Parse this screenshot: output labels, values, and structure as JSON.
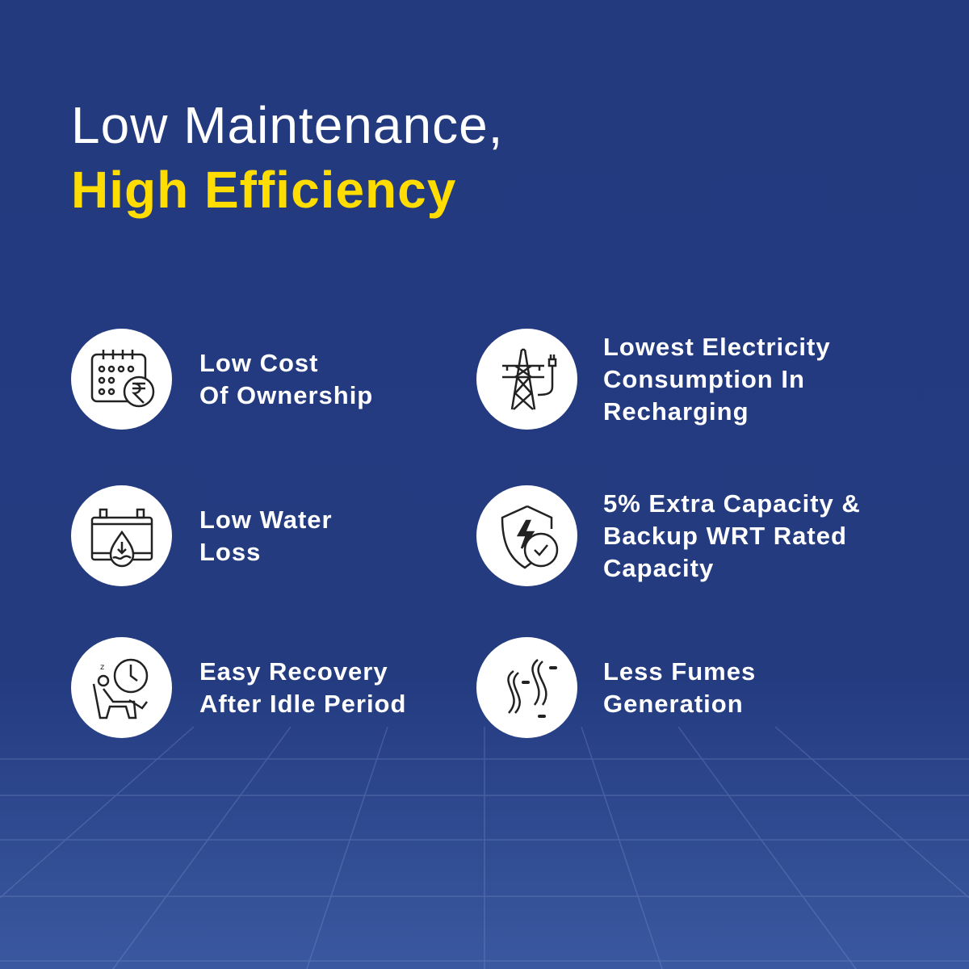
{
  "heading": {
    "line1": "Low Maintenance,",
    "line2": "High Efficiency"
  },
  "colors": {
    "background": "#243b80",
    "accent": "#ffdd00",
    "text": "#ffffff",
    "icon_bg": "#ffffff",
    "icon_stroke": "#222222"
  },
  "features": [
    {
      "icon": "calendar-rupee-icon",
      "lines": [
        "Low Cost",
        "Of Ownership"
      ]
    },
    {
      "icon": "power-tower-plug-icon",
      "lines": [
        "Lowest Electricity",
        "Consumption In",
        "Recharging"
      ]
    },
    {
      "icon": "battery-water-drop-icon",
      "lines": [
        "Low Water",
        "Loss"
      ]
    },
    {
      "icon": "shield-bolt-clock-icon",
      "lines": [
        "5% Extra Capacity &",
        "Backup WRT Rated",
        "Capacity"
      ]
    },
    {
      "icon": "resting-person-clock-icon",
      "lines": [
        "Easy Recovery",
        "After Idle Period"
      ]
    },
    {
      "icon": "fumes-icon",
      "lines": [
        "Less Fumes",
        "Generation"
      ]
    }
  ]
}
